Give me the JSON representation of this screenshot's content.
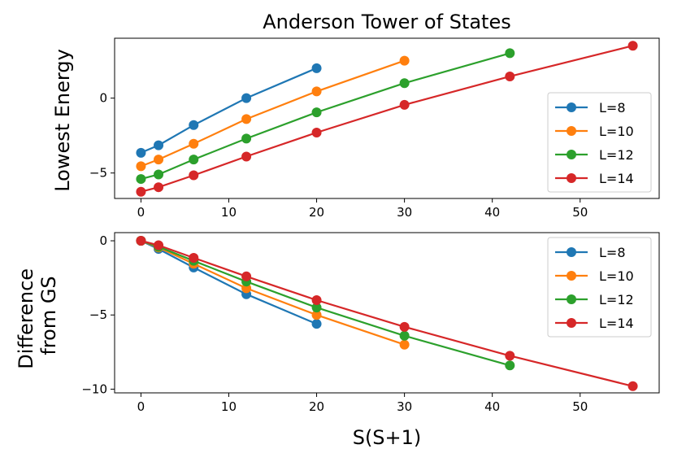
{
  "chart_data": [
    {
      "type": "line",
      "title": "Anderson Tower of States",
      "xlabel": "",
      "ylabel": "Lowest Energy",
      "xlim": [
        -3,
        59
      ],
      "ylim": [
        -6.7,
        4.0
      ],
      "xticks": [
        0,
        10,
        20,
        30,
        40,
        50
      ],
      "yticks": [
        -5,
        0
      ],
      "xtick_labels": [
        "0",
        "10",
        "20",
        "30",
        "40",
        "50"
      ],
      "ytick_labels": [
        "−5",
        "0"
      ],
      "legend_position": "lower-right",
      "grid": false,
      "series": [
        {
          "name": "L=8",
          "color": "#1f77b4",
          "x": [
            0,
            2,
            6,
            12,
            20
          ],
          "y": [
            -3.65,
            -3.15,
            -1.8,
            0.0,
            2.0
          ]
        },
        {
          "name": "L=10",
          "color": "#ff7f0e",
          "x": [
            0,
            2,
            6,
            12,
            20,
            30
          ],
          "y": [
            -4.55,
            -4.1,
            -3.05,
            -1.4,
            0.45,
            2.5
          ]
        },
        {
          "name": "L=12",
          "color": "#2ca02c",
          "x": [
            0,
            2,
            6,
            12,
            20,
            30,
            42
          ],
          "y": [
            -5.4,
            -5.1,
            -4.1,
            -2.7,
            -0.95,
            1.0,
            3.0
          ]
        },
        {
          "name": "L=14",
          "color": "#d62728",
          "x": [
            0,
            2,
            6,
            12,
            20,
            30,
            42,
            56
          ],
          "y": [
            -6.25,
            -5.95,
            -5.15,
            -3.9,
            -2.3,
            -0.45,
            1.45,
            3.5
          ]
        }
      ]
    },
    {
      "type": "line",
      "title": "",
      "xlabel": "S(S+1)",
      "ylabel": "Difference from GS",
      "ylabel_lines": [
        "Difference",
        "from GS"
      ],
      "xlim": [
        -3,
        59
      ],
      "ylim": [
        -10.25,
        0.55
      ],
      "xticks": [
        0,
        10,
        20,
        30,
        40,
        50
      ],
      "yticks": [
        -10,
        -5,
        0
      ],
      "xtick_labels": [
        "0",
        "10",
        "20",
        "30",
        "40",
        "50"
      ],
      "ytick_labels": [
        "−10",
        "−5",
        "0"
      ],
      "legend_position": "upper-right",
      "grid": false,
      "series": [
        {
          "name": "L=8",
          "color": "#1f77b4",
          "x": [
            0,
            2,
            6,
            12,
            20
          ],
          "y": [
            0.0,
            -0.55,
            -1.8,
            -3.6,
            -5.6
          ]
        },
        {
          "name": "L=10",
          "color": "#ff7f0e",
          "x": [
            0,
            2,
            6,
            12,
            20,
            30
          ],
          "y": [
            0.0,
            -0.45,
            -1.55,
            -3.2,
            -5.0,
            -7.0
          ]
        },
        {
          "name": "L=12",
          "color": "#2ca02c",
          "x": [
            0,
            2,
            6,
            12,
            20,
            30,
            42
          ],
          "y": [
            0.0,
            -0.4,
            -1.35,
            -2.75,
            -4.5,
            -6.4,
            -8.4
          ]
        },
        {
          "name": "L=14",
          "color": "#d62728",
          "x": [
            0,
            2,
            6,
            12,
            20,
            30,
            42,
            56
          ],
          "y": [
            0.0,
            -0.3,
            -1.15,
            -2.4,
            -4.0,
            -5.8,
            -7.75,
            -9.8
          ]
        }
      ]
    }
  ]
}
